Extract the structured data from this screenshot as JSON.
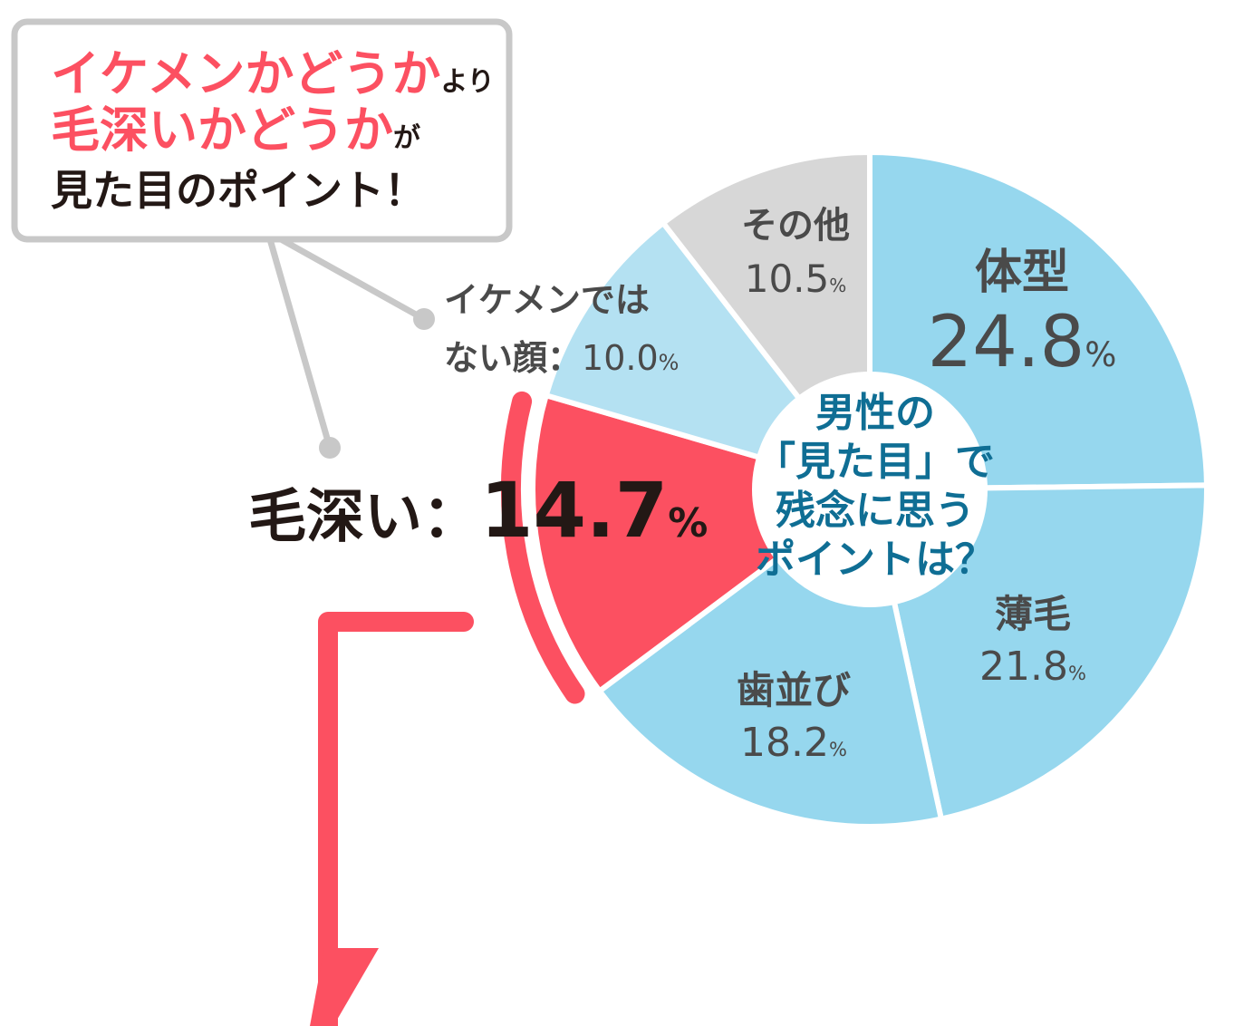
{
  "callout": {
    "line1_main": "イケメンかどうか",
    "line1_suffix": "より",
    "line2_main": "毛深いかどうか",
    "line2_suffix": "が",
    "line3": "見た目のポイント！"
  },
  "chart_data": {
    "type": "pie",
    "center_label": [
      "男性の",
      "「見た目」で",
      "残念に思う",
      "ポイントは？"
    ],
    "unit": "%",
    "slices": [
      {
        "label": "体型",
        "value": 24.8,
        "value_text": "24.8",
        "color": "#96d7ee"
      },
      {
        "label": "薄毛",
        "value": 21.8,
        "value_text": "21.8",
        "color": "#96d7ee"
      },
      {
        "label": "歯並び",
        "value": 18.2,
        "value_text": "18.2",
        "color": "#96d7ee"
      },
      {
        "label": "毛深い",
        "value": 14.7,
        "value_text": "14.7",
        "color": "#fc5061",
        "highlight": true
      },
      {
        "label_lines": [
          "イケメンでは",
          "ない顔"
        ],
        "value": 10.0,
        "value_text": "10.0",
        "color": "#b4e1f2"
      },
      {
        "label": "その他",
        "value": 10.5,
        "value_text": "10.5",
        "color": "#d7d7d7"
      }
    ]
  },
  "colors": {
    "accent": "#fc5061",
    "center_text": "#0f6e94",
    "label_text": "#4a4a4a",
    "highlight_text": "#231815",
    "callout_border": "#c8c8c8"
  }
}
